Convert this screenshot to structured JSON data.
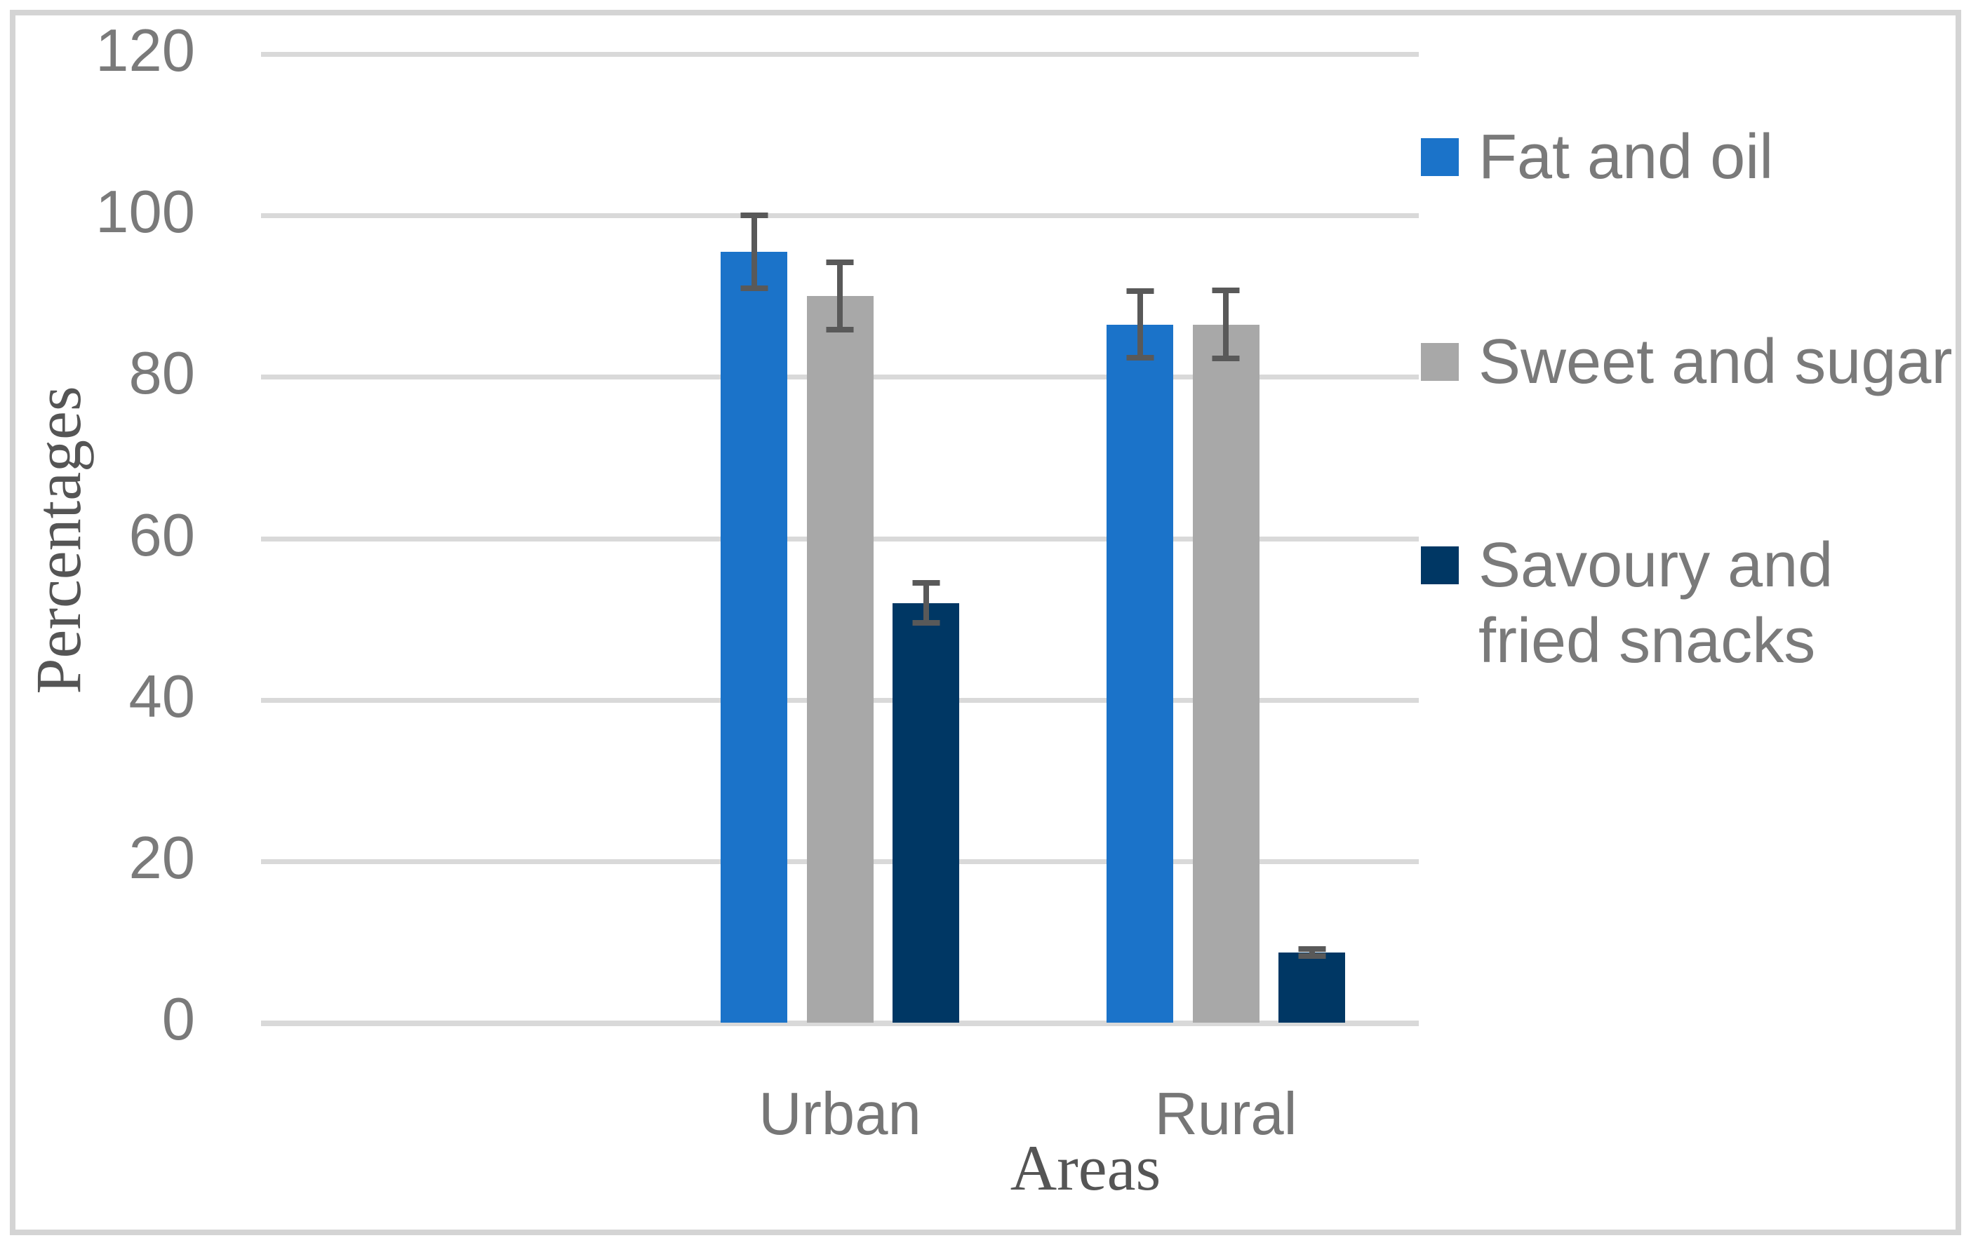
{
  "chart_data": {
    "type": "bar",
    "title": "",
    "xlabel": "Areas",
    "ylabel": "Percentages",
    "categories": [
      "Urban",
      "Rural"
    ],
    "series": [
      {
        "name": "Fat and oil",
        "color": "#1B73C9",
        "values": [
          95.5,
          86.5
        ],
        "errors": [
          4.9,
          4.5
        ],
        "legend_lines": [
          "Fat and oil"
        ]
      },
      {
        "name": "Sweet and sugar",
        "color": "#A8A8A8",
        "values": [
          90.0,
          86.5
        ],
        "errors": [
          4.5,
          4.6
        ],
        "legend_lines": [
          "Sweet and sugar"
        ]
      },
      {
        "name": "Savoury and fried snacks",
        "color": "#003764",
        "values": [
          52.0,
          8.7
        ],
        "errors": [
          2.8,
          0.8
        ],
        "legend_lines": [
          "Savoury and",
          "fried snacks"
        ]
      }
    ],
    "yticks": [
      0,
      20,
      40,
      60,
      80,
      100,
      120
    ],
    "ylim": [
      0,
      120
    ],
    "grid": true,
    "error_bars": true,
    "legend_position": "right"
  },
  "styles": {
    "grid_color": "#D9D9D9",
    "error_bar_color": "#595959",
    "tick_text_color": "#7A7A7A",
    "category_text_color": "#767676",
    "axis_title_color": "#555555",
    "frame_color": "#D4D4D4",
    "background": "#FFFFFF"
  }
}
